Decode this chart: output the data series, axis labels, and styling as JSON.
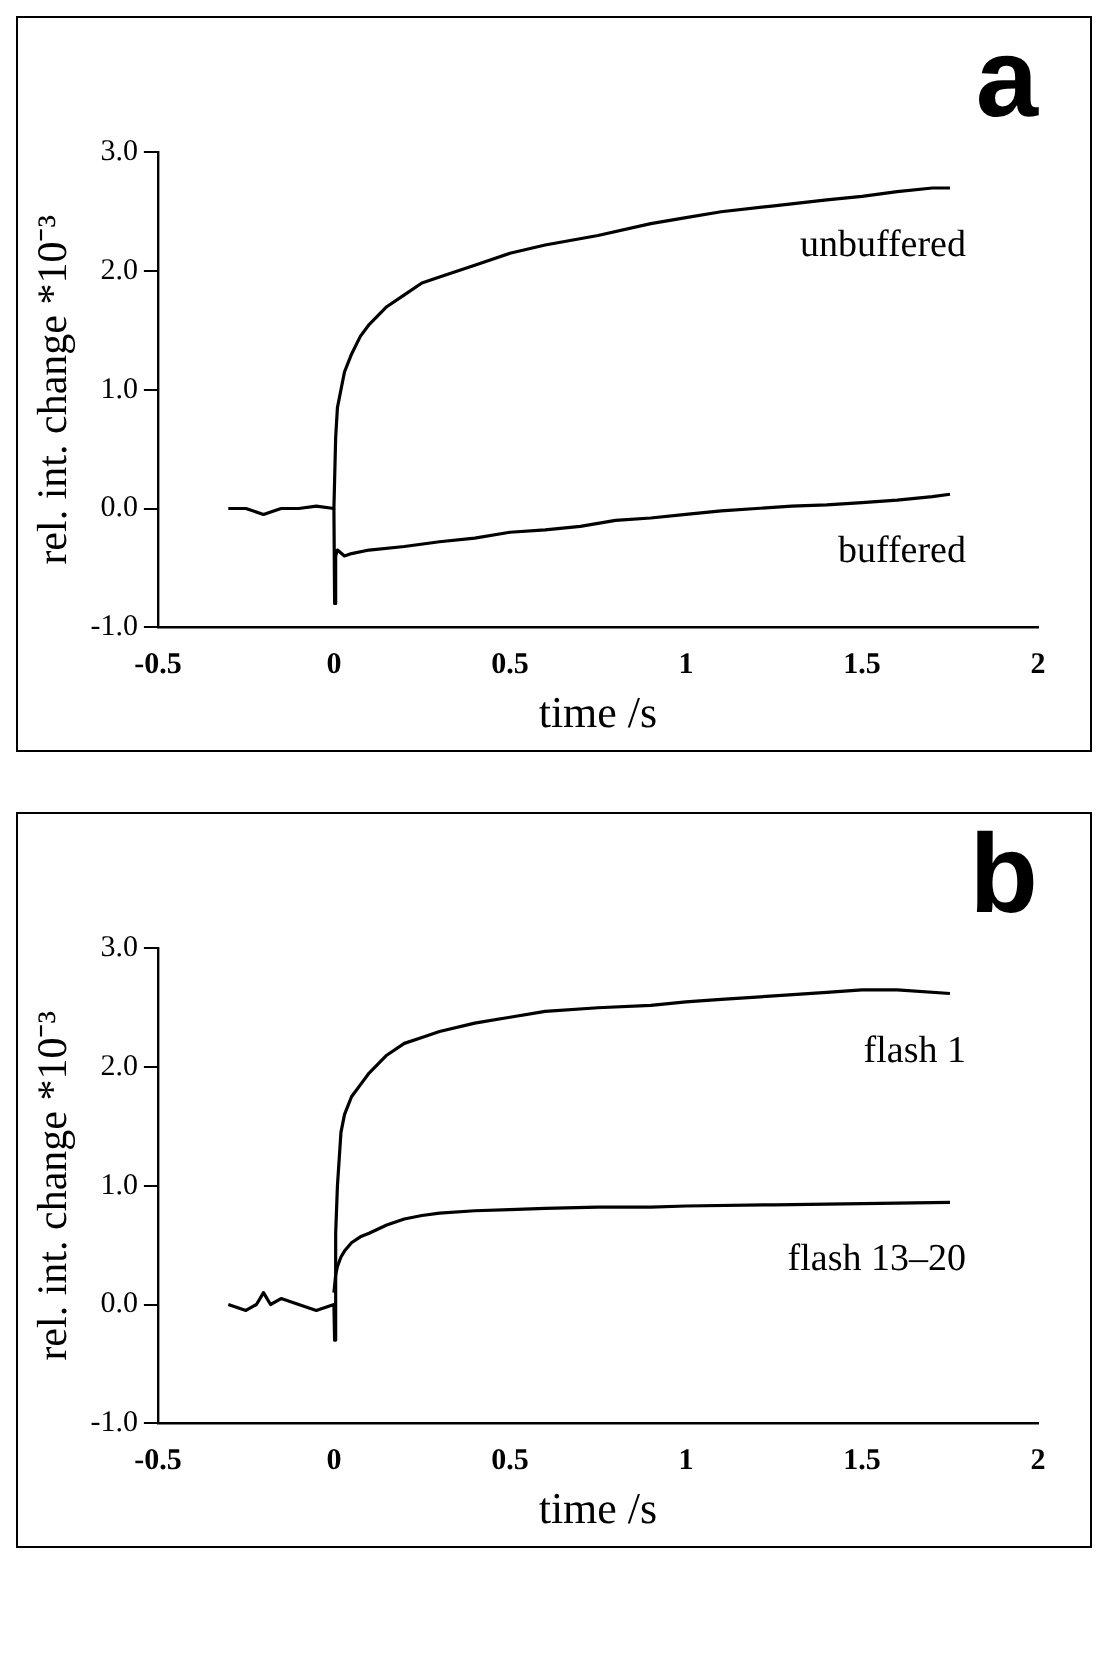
{
  "chart_data": [
    {
      "type": "line",
      "title": "a",
      "xlabel": "time /s",
      "ylabel": "rel. int. change *10⁻³",
      "xlim": [
        -0.5,
        2
      ],
      "ylim": [
        -1,
        3
      ],
      "xticks": [
        -0.5,
        0,
        0.5,
        1,
        1.5,
        2
      ],
      "yticks": [
        {
          "value": -1,
          "label": "-1.0"
        },
        {
          "value": 0,
          "label": "0.0"
        },
        {
          "value": 1,
          "label": "1.0"
        },
        {
          "value": 2,
          "label": "2.0"
        },
        {
          "value": 3,
          "label": "3.0"
        }
      ],
      "grid": false,
      "legend": false,
      "marker": "none",
      "line_style": "solid",
      "series": [
        {
          "name": "unbuffered",
          "color": "#000000",
          "x": [
            -0.3,
            -0.25,
            -0.2,
            -0.15,
            -0.1,
            -0.05,
            0,
            0.005,
            0.01,
            0.02,
            0.03,
            0.05,
            0.075,
            0.1,
            0.15,
            0.2,
            0.25,
            0.3,
            0.4,
            0.5,
            0.6,
            0.75,
            0.9,
            1.0,
            1.1,
            1.25,
            1.4,
            1.5,
            1.6,
            1.7,
            1.75
          ],
          "values": [
            0,
            0,
            -0.05,
            0,
            0,
            0.02,
            0,
            0.6,
            0.85,
            1.0,
            1.15,
            1.3,
            1.45,
            1.55,
            1.7,
            1.8,
            1.9,
            1.95,
            2.05,
            2.15,
            2.22,
            2.3,
            2.4,
            2.45,
            2.5,
            2.55,
            2.6,
            2.63,
            2.67,
            2.7,
            2.7
          ]
        },
        {
          "name": "buffered",
          "color": "#000000",
          "x": [
            0,
            0.002,
            0.005,
            0.01,
            0.03,
            0.05,
            0.1,
            0.2,
            0.3,
            0.4,
            0.5,
            0.6,
            0.7,
            0.8,
            0.9,
            1.0,
            1.1,
            1.2,
            1.3,
            1.4,
            1.5,
            1.6,
            1.7,
            1.75
          ],
          "values": [
            0,
            -0.8,
            -0.4,
            -0.35,
            -0.4,
            -0.38,
            -0.35,
            -0.32,
            -0.28,
            -0.25,
            -0.2,
            -0.18,
            -0.15,
            -0.1,
            -0.08,
            -0.05,
            -0.02,
            0,
            0.02,
            0.03,
            0.05,
            0.07,
            0.1,
            0.12
          ]
        }
      ]
    },
    {
      "type": "line",
      "title": "b",
      "xlabel": "time /s",
      "ylabel": "rel. int. change *10⁻³",
      "xlim": [
        -0.5,
        2
      ],
      "ylim": [
        -1,
        3
      ],
      "xticks": [
        -0.5,
        0,
        0.5,
        1,
        1.5,
        2
      ],
      "yticks": [
        {
          "value": -1,
          "label": "-1.0"
        },
        {
          "value": 0,
          "label": "0.0"
        },
        {
          "value": 1,
          "label": "1.0"
        },
        {
          "value": 2,
          "label": "2.0"
        },
        {
          "value": 3,
          "label": "3.0"
        }
      ],
      "grid": false,
      "legend": false,
      "marker": "none",
      "line_style": "solid",
      "series": [
        {
          "name": "flash 1",
          "color": "#000000",
          "x": [
            -0.3,
            -0.25,
            -0.22,
            -0.2,
            -0.18,
            -0.15,
            -0.1,
            -0.05,
            0,
            0.002,
            0.005,
            0.01,
            0.02,
            0.03,
            0.05,
            0.075,
            0.1,
            0.15,
            0.2,
            0.25,
            0.3,
            0.4,
            0.5,
            0.6,
            0.75,
            0.9,
            1.0,
            1.1,
            1.25,
            1.4,
            1.5,
            1.6,
            1.75
          ],
          "values": [
            0,
            -0.05,
            0,
            0.1,
            0,
            0.05,
            0,
            -0.05,
            0,
            -0.3,
            0.6,
            1.0,
            1.45,
            1.6,
            1.75,
            1.85,
            1.95,
            2.1,
            2.2,
            2.25,
            2.3,
            2.37,
            2.42,
            2.47,
            2.5,
            2.52,
            2.55,
            2.57,
            2.6,
            2.63,
            2.65,
            2.65,
            2.62
          ]
        },
        {
          "name": "flash 13–20",
          "color": "#000000",
          "x": [
            0,
            0.005,
            0.01,
            0.02,
            0.03,
            0.05,
            0.075,
            0.1,
            0.15,
            0.2,
            0.25,
            0.3,
            0.4,
            0.5,
            0.6,
            0.75,
            0.9,
            1.0,
            1.25,
            1.5,
            1.75
          ],
          "values": [
            0.1,
            0.25,
            0.32,
            0.4,
            0.45,
            0.52,
            0.57,
            0.6,
            0.67,
            0.72,
            0.75,
            0.77,
            0.79,
            0.8,
            0.81,
            0.82,
            0.82,
            0.83,
            0.84,
            0.85,
            0.86
          ]
        }
      ]
    }
  ]
}
